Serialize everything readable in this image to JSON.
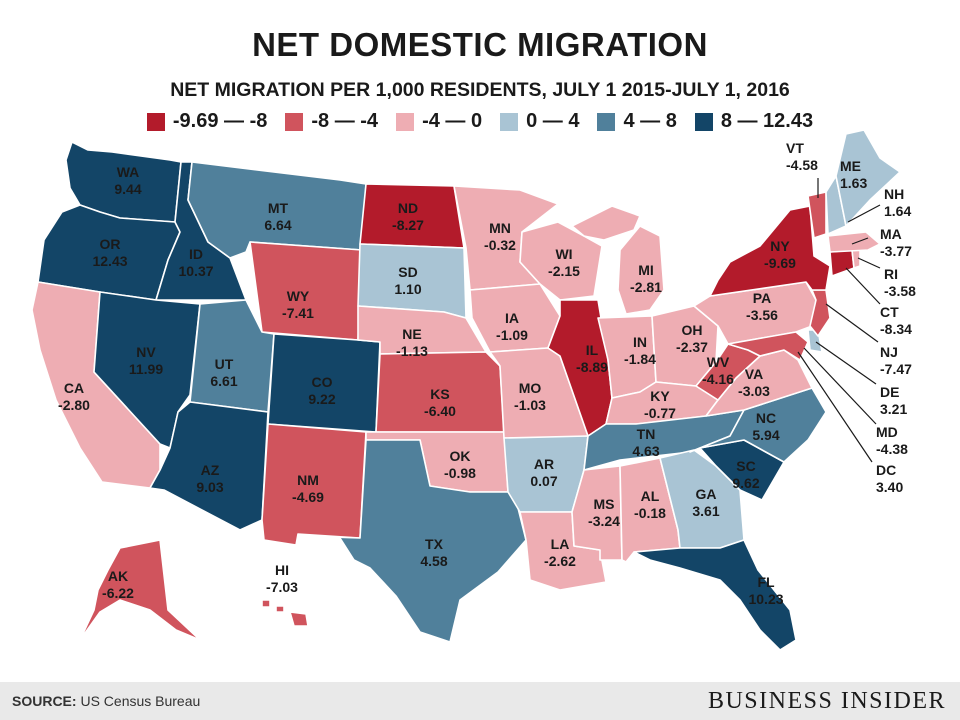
{
  "title": "NET DOMESTIC MIGRATION",
  "subtitle": "NET MIGRATION PER 1,000 RESIDENTS, JULY 1 2015-JULY 1, 2016",
  "legend": [
    {
      "label": "-9.69 — -8",
      "color": "#b31b2b"
    },
    {
      "label": "-8 — -4",
      "color": "#d0545d"
    },
    {
      "label": "-4 — 0",
      "color": "#eeadb3"
    },
    {
      "label": "0 — 4",
      "color": "#a9c4d4"
    },
    {
      "label": "4 — 8",
      "color": "#50809b"
    },
    {
      "label": "8 — 12.43",
      "color": "#134567"
    }
  ],
  "states": {
    "WA": {
      "abbr": "WA",
      "value": "9.44"
    },
    "OR": {
      "abbr": "OR",
      "value": "12.43"
    },
    "CA": {
      "abbr": "CA",
      "value": "-2.80"
    },
    "ID": {
      "abbr": "ID",
      "value": "10.37"
    },
    "NV": {
      "abbr": "NV",
      "value": "11.99"
    },
    "MT": {
      "abbr": "MT",
      "value": "6.64"
    },
    "WY": {
      "abbr": "WY",
      "value": "-7.41"
    },
    "UT": {
      "abbr": "UT",
      "value": "6.61"
    },
    "AZ": {
      "abbr": "AZ",
      "value": "9.03"
    },
    "CO": {
      "abbr": "CO",
      "value": "9.22"
    },
    "NM": {
      "abbr": "NM",
      "value": "-4.69"
    },
    "ND": {
      "abbr": "ND",
      "value": "-8.27"
    },
    "SD": {
      "abbr": "SD",
      "value": "1.10"
    },
    "NE": {
      "abbr": "NE",
      "value": "-1.13"
    },
    "KS": {
      "abbr": "KS",
      "value": "-6.40"
    },
    "OK": {
      "abbr": "OK",
      "value": "-0.98"
    },
    "TX": {
      "abbr": "TX",
      "value": "4.58"
    },
    "MN": {
      "abbr": "MN",
      "value": "-0.32"
    },
    "IA": {
      "abbr": "IA",
      "value": "-1.09"
    },
    "MO": {
      "abbr": "MO",
      "value": "-1.03"
    },
    "AR": {
      "abbr": "AR",
      "value": "0.07"
    },
    "LA": {
      "abbr": "LA",
      "value": "-2.62"
    },
    "WI": {
      "abbr": "WI",
      "value": "-2.15"
    },
    "IL": {
      "abbr": "IL",
      "value": "-8.89"
    },
    "MI": {
      "abbr": "MI",
      "value": "-2.81"
    },
    "IN": {
      "abbr": "IN",
      "value": "-1.84"
    },
    "OH": {
      "abbr": "OH",
      "value": "-2.37"
    },
    "KY": {
      "abbr": "KY",
      "value": "-0.77"
    },
    "TN": {
      "abbr": "TN",
      "value": "4.63"
    },
    "MS": {
      "abbr": "MS",
      "value": "-3.24"
    },
    "AL": {
      "abbr": "AL",
      "value": "-0.18"
    },
    "GA": {
      "abbr": "GA",
      "value": "3.61"
    },
    "FL": {
      "abbr": "FL",
      "value": "10.23"
    },
    "SC": {
      "abbr": "SC",
      "value": "9.62"
    },
    "NC": {
      "abbr": "NC",
      "value": "5.94"
    },
    "VA": {
      "abbr": "VA",
      "value": "-3.03"
    },
    "WV": {
      "abbr": "WV",
      "value": "-4.16"
    },
    "PA": {
      "abbr": "PA",
      "value": "-3.56"
    },
    "NY": {
      "abbr": "NY",
      "value": "-9.69"
    },
    "VT": {
      "abbr": "VT",
      "value": "-4.58"
    },
    "NH": {
      "abbr": "NH",
      "value": "1.64"
    },
    "ME": {
      "abbr": "ME",
      "value": "1.63"
    },
    "MA": {
      "abbr": "MA",
      "value": "-3.77"
    },
    "RI": {
      "abbr": "RI",
      "value": "-3.58"
    },
    "CT": {
      "abbr": "CT",
      "value": "-8.34"
    },
    "NJ": {
      "abbr": "NJ",
      "value": "-7.47"
    },
    "DE": {
      "abbr": "DE",
      "value": "3.21"
    },
    "MD": {
      "abbr": "MD",
      "value": "-4.38"
    },
    "DC": {
      "abbr": "DC",
      "value": "3.40"
    },
    "AK": {
      "abbr": "AK",
      "value": "-6.22"
    },
    "HI": {
      "abbr": "HI",
      "value": "-7.03"
    }
  },
  "footer": {
    "source_label": "SOURCE:",
    "source_text": "US Census Bureau",
    "brand": "BUSINESS INSIDER"
  }
}
